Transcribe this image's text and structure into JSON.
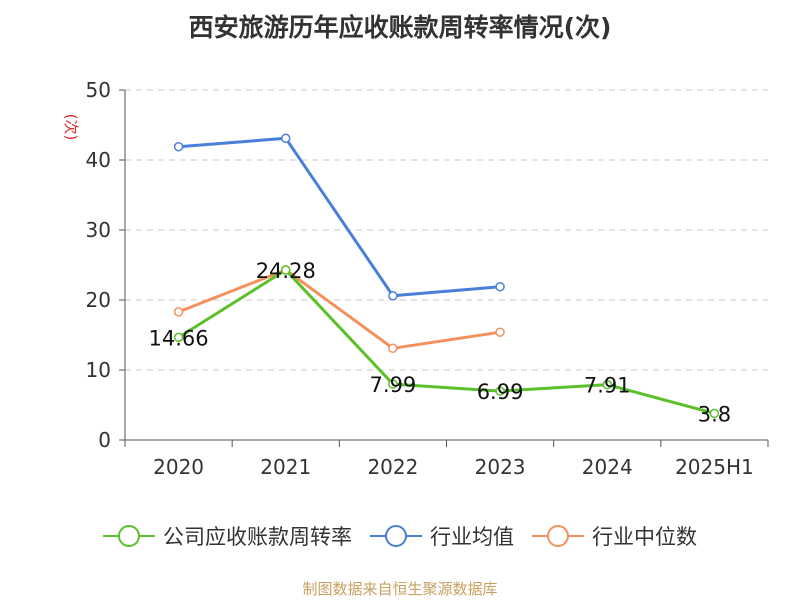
{
  "chart_data": {
    "type": "line",
    "title": "西安旅游历年应收账款周转率情况(次)",
    "ylabel": "(次)",
    "xlabel": "",
    "categories": [
      "2020",
      "2021",
      "2022",
      "2023",
      "2024",
      "2025H1"
    ],
    "ylim": [
      0,
      50
    ],
    "yticks": [
      0,
      10,
      20,
      30,
      40,
      50
    ],
    "grid": true,
    "legend_position": "bottom",
    "series": [
      {
        "name": "公司应收账款周转率",
        "color": "#5cc02a",
        "values": [
          14.66,
          24.28,
          7.99,
          6.99,
          7.91,
          3.8
        ],
        "labels": [
          "14.66",
          "24.28",
          "7.99",
          "6.99",
          "7.91",
          "3.8"
        ]
      },
      {
        "name": "行业均值",
        "color": "#4a7fd9",
        "values": [
          41.9,
          43.1,
          20.6,
          21.9,
          null,
          null
        ]
      },
      {
        "name": "行业中位数",
        "color": "#f5905c",
        "values": [
          18.3,
          24.3,
          13.1,
          15.4,
          null,
          null
        ]
      }
    ]
  },
  "footer": {
    "source": "制图数据来自恒生聚源数据库"
  }
}
